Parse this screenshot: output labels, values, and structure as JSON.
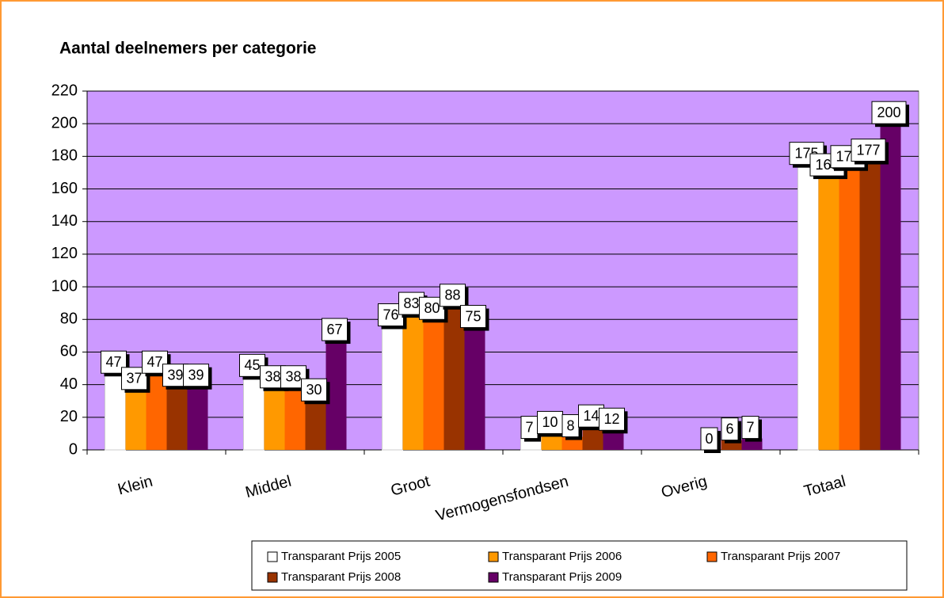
{
  "chart_data": {
    "type": "bar",
    "title": "Aantal deelnemers per categorie",
    "categories": [
      "Klein",
      "Middel",
      "Groot",
      "Vermogensfondsen",
      "Overig",
      "Totaal"
    ],
    "series": [
      {
        "name": "Transparant Prijs 2005",
        "color": "#ffffff",
        "values": [
          47,
          45,
          76,
          7,
          null,
          175
        ]
      },
      {
        "name": "Transparant Prijs 2006",
        "color": "#ff9900",
        "values": [
          37,
          38,
          83,
          10,
          null,
          168
        ]
      },
      {
        "name": "Transparant Prijs 2007",
        "color": "#ff6600",
        "values": [
          47,
          38,
          80,
          8,
          0,
          173
        ]
      },
      {
        "name": "Transparant Prijs 2008",
        "color": "#993300",
        "values": [
          39,
          30,
          88,
          14,
          6,
          177
        ]
      },
      {
        "name": "Transparant Prijs 2009",
        "color": "#660066",
        "values": [
          39,
          67,
          75,
          12,
          7,
          200
        ]
      }
    ],
    "ylim": [
      0,
      220
    ],
    "yticks": [
      0,
      20,
      40,
      60,
      80,
      100,
      120,
      140,
      160,
      180,
      200,
      220
    ],
    "grid": true,
    "plot_background": "#cc99ff",
    "legend": "bottom"
  }
}
